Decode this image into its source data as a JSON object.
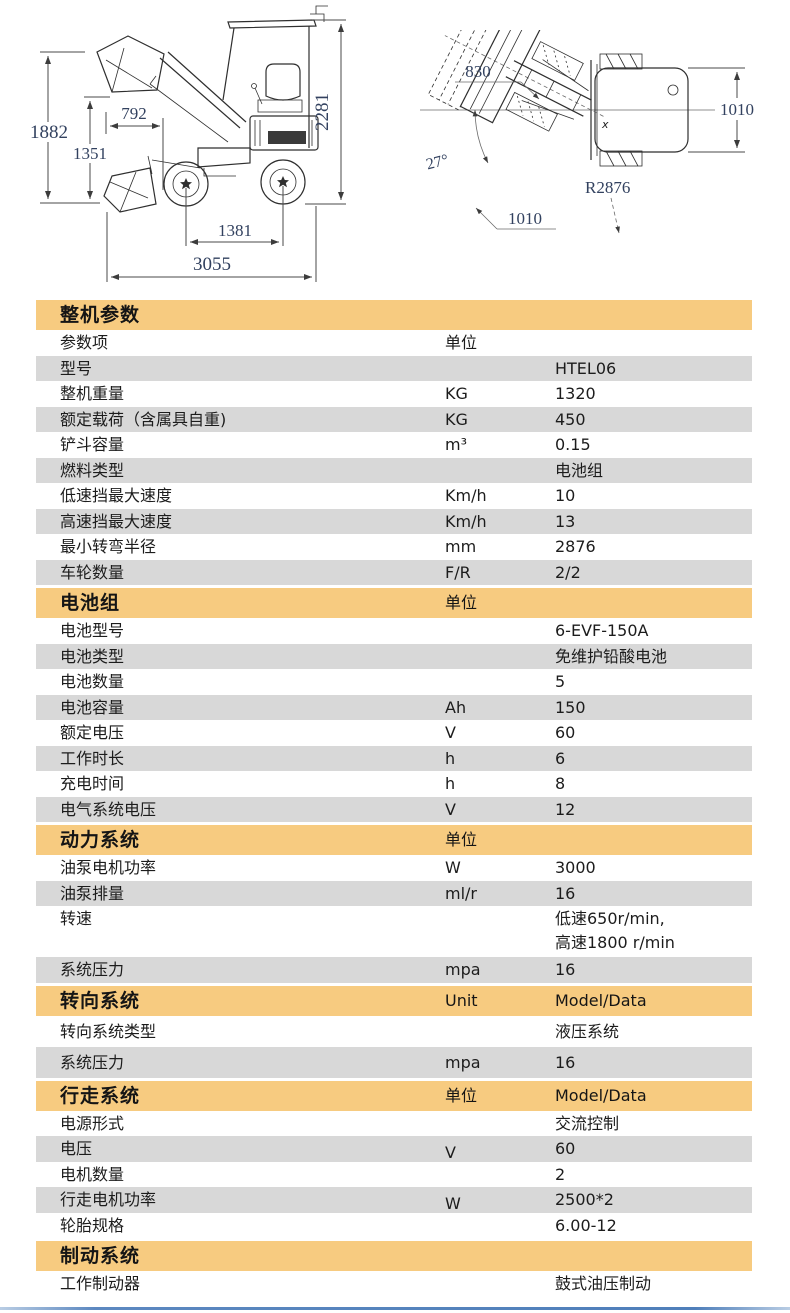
{
  "colors": {
    "band": "#f7cb80",
    "row_alt": "#d8d8d8",
    "dim_text": "#32415f",
    "bottom_rule": "#4f7fba"
  },
  "drawings": {
    "side": {
      "d1882": "1882",
      "d1351": "1351",
      "d792": "792",
      "d2281": "2281",
      "d1381": "1381",
      "d3055": "3055"
    },
    "top": {
      "d830": "830",
      "angle": "27°",
      "d1010_bucket": "1010",
      "r2876": "R2876",
      "d1010_body": "1010",
      "marker": "x"
    }
  },
  "table": {
    "sections": [
      {
        "title": "整机参数",
        "band_unit": "",
        "band_value": "",
        "header_row": {
          "label": "参数项",
          "unit": "单位"
        },
        "rows": [
          {
            "label": "型号",
            "unit": "",
            "value": "HTEL06"
          },
          {
            "label": "整机重量",
            "unit": "KG",
            "value": "1320"
          },
          {
            "label": "额定载荷（含属具自重)",
            "unit": "KG",
            "value": "450"
          },
          {
            "label": "铲斗容量",
            "unit": "m³",
            "value": "0.15"
          },
          {
            "label": "燃料类型",
            "unit": "",
            "value": "电池组"
          },
          {
            "label": "低速挡最大速度",
            "unit": "Km/h",
            "value": "10"
          },
          {
            "label": "高速挡最大速度",
            "unit": "Km/h",
            "value": "13"
          },
          {
            "label": "最小转弯半径",
            "unit": "mm",
            "value": "2876"
          },
          {
            "label": "车轮数量",
            "unit": "F/R",
            "value": "2/2"
          }
        ]
      },
      {
        "title": "电池组",
        "band_unit": "单位",
        "band_value": "",
        "rows": [
          {
            "label": "电池型号",
            "unit": "",
            "value": "6-EVF-150A"
          },
          {
            "label": "电池类型",
            "unit": "",
            "value": "免维护铅酸电池"
          },
          {
            "label": "电池数量",
            "unit": "",
            "value": "5"
          },
          {
            "label": "电池容量",
            "unit": "Ah",
            "value": "150"
          },
          {
            "label": "额定电压",
            "unit": "V",
            "value": "60"
          },
          {
            "label": "工作时长",
            "unit": "h",
            "value": "6"
          },
          {
            "label": "充电时间",
            "unit": "h",
            "value": "8"
          },
          {
            "label": "电气系统电压",
            "unit": "V",
            "value": "12"
          }
        ]
      },
      {
        "title": "动力系统",
        "band_unit": "单位",
        "band_value": "",
        "rows": [
          {
            "label": "油泵电机功率",
            "unit": "W",
            "value": "3000"
          },
          {
            "label": "油泵排量",
            "unit": "ml/r",
            "value": "16"
          },
          {
            "label": "转速",
            "unit": "",
            "value": "低速650r/min,\n高速1800 r/min"
          },
          {
            "label": "系统压力",
            "unit": "mpa",
            "value": "16"
          }
        ]
      },
      {
        "title": "转向系统",
        "band_unit": "Unit",
        "band_value": "Model/Data",
        "rows": [
          {
            "label": "转向系统类型",
            "unit": "",
            "value": "液压系统"
          },
          {
            "label": "系统压力",
            "unit": "mpa",
            "value": "16"
          }
        ]
      },
      {
        "title": "行走系统",
        "band_unit": "单位",
        "band_value": "Model/Data",
        "rows": [
          {
            "label": "电源形式",
            "unit": "",
            "value": "交流控制"
          },
          {
            "label": "电压",
            "unit": "V",
            "value": "60"
          },
          {
            "label": "电机数量",
            "unit": "",
            "value": "2"
          },
          {
            "label": "行走电机功率",
            "unit": "W",
            "value": "2500*2"
          },
          {
            "label": "轮胎规格",
            "unit": "",
            "value": "6.00-12"
          }
        ]
      },
      {
        "title": "制动系统",
        "band_unit": "",
        "band_value": "",
        "rows": [
          {
            "label": "工作制动器",
            "unit": "",
            "value": "鼓式油压制动"
          }
        ]
      }
    ]
  }
}
